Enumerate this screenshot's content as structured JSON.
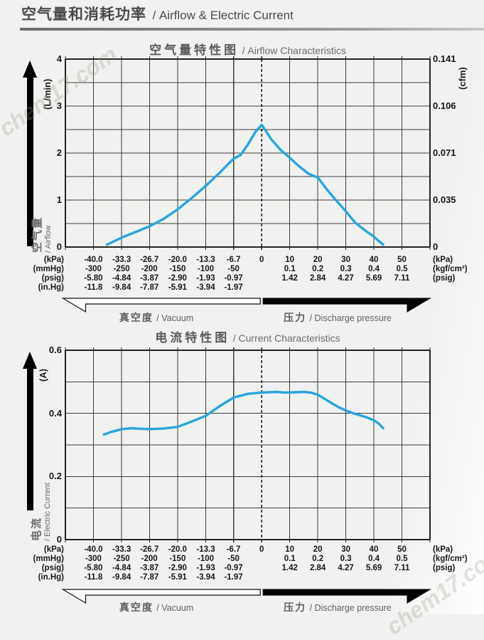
{
  "watermark": "chem17.com",
  "page": {
    "title_zh": "空气量和消耗功率",
    "title_en": "/ Airflow & Electric Current"
  },
  "x_axis": {
    "tick_positions_kpa": [
      -40,
      -33.3,
      -26.7,
      -20,
      -13.3,
      -6.7,
      0,
      10,
      20,
      30,
      40,
      50
    ],
    "rows": [
      {
        "unit_left": "(kPa)",
        "unit_right": "(kPa)",
        "values": [
          "-40.0",
          "-33.3",
          "-26.7",
          "-20.0",
          "-13.3",
          "-6.7",
          "0",
          "10",
          "20",
          "30",
          "40",
          "50"
        ]
      },
      {
        "unit_left": "(mmHg)",
        "unit_right": "(kgf/cm²)",
        "values": [
          "-300",
          "-250",
          "-200",
          "-150",
          "-100",
          "-50",
          "",
          "0.1",
          "0.2",
          "0.3",
          "0.4",
          "0.5"
        ]
      },
      {
        "unit_left": "(psig)",
        "unit_right": "(psig)",
        "values": [
          "-5.80",
          "-4.84",
          "-3.87",
          "-2.90",
          "-1.93",
          "-0.97",
          "",
          "1.42",
          "2.84",
          "4.27",
          "5.69",
          "7.11"
        ]
      },
      {
        "unit_left": "(in.Hg)",
        "unit_right": "",
        "values": [
          "-11.8",
          "-9.84",
          "-7.87",
          "-5.91",
          "-3.94",
          "-1.97",
          "",
          "",
          "",
          "",
          "",
          ""
        ]
      }
    ],
    "vacuum_zh": "真空度",
    "vacuum_en": "/ Vacuum",
    "pressure_zh": "压力",
    "pressure_en": "/ Discharge pressure"
  },
  "chart_data": [
    {
      "type": "line",
      "title_zh": "空气量特性图",
      "title_en": "/ Airflow Characteristics",
      "y_axis_zh": "空气量",
      "y_axis_en": "/ Airflow",
      "y_unit_left": "(L/min)",
      "y_unit_right": "(cfm)",
      "ylim": [
        0,
        4
      ],
      "y_grid_step": 0.5,
      "y_ticks_left": [
        {
          "v": 4,
          "t": "4"
        },
        {
          "v": 3,
          "t": "3"
        },
        {
          "v": 2,
          "t": "2"
        },
        {
          "v": 1,
          "t": "1"
        },
        {
          "v": 0,
          "t": "0"
        }
      ],
      "y_ticks_right": [
        {
          "v": 4,
          "t": "0.141"
        },
        {
          "v": 3,
          "t": "0.106"
        },
        {
          "v": 2,
          "t": "0.071"
        },
        {
          "v": 1,
          "t": "0.035"
        },
        {
          "v": 0,
          "t": "0"
        }
      ],
      "line_color": "#27a5de",
      "zero_line_dashed": true,
      "points_kpa_value": [
        [
          -36.8,
          0.05
        ],
        [
          -33.3,
          0.2
        ],
        [
          -30,
          0.32
        ],
        [
          -26.7,
          0.44
        ],
        [
          -23.3,
          0.6
        ],
        [
          -20,
          0.8
        ],
        [
          -16.7,
          1.04
        ],
        [
          -13.3,
          1.3
        ],
        [
          -10,
          1.58
        ],
        [
          -6.7,
          1.88
        ],
        [
          -5,
          1.96
        ],
        [
          -3.3,
          2.18
        ],
        [
          -1.5,
          2.45
        ],
        [
          0,
          2.6
        ],
        [
          1.5,
          2.47
        ],
        [
          3.3,
          2.3
        ],
        [
          6.7,
          2.07
        ],
        [
          10,
          1.9
        ],
        [
          13.3,
          1.72
        ],
        [
          16.7,
          1.56
        ],
        [
          20,
          1.48
        ],
        [
          23.3,
          1.22
        ],
        [
          26.7,
          0.98
        ],
        [
          30,
          0.76
        ],
        [
          33.3,
          0.52
        ],
        [
          36.7,
          0.36
        ],
        [
          40,
          0.22
        ],
        [
          41.7,
          0.13
        ],
        [
          43.3,
          0.05
        ]
      ]
    },
    {
      "type": "line",
      "title_zh": "电流特性图",
      "title_en": "/ Current Characteristics",
      "y_axis_zh": "电流",
      "y_axis_en": "/ Electric Current",
      "y_unit_left": "(A)",
      "y_unit_right": "",
      "ylim": [
        0,
        0.6
      ],
      "y_grid_step": 0.1,
      "y_ticks_left": [
        {
          "v": 0.6,
          "t": "0.6"
        },
        {
          "v": 0.4,
          "t": "0.4"
        },
        {
          "v": 0.2,
          "t": "0.2"
        },
        {
          "v": 0,
          "t": "0"
        }
      ],
      "y_ticks_right": [],
      "line_color": "#27a5de",
      "zero_line_dashed": true,
      "points_kpa_value": [
        [
          -37.5,
          0.333
        ],
        [
          -35.8,
          0.341
        ],
        [
          -33.3,
          0.35
        ],
        [
          -31,
          0.353
        ],
        [
          -28.3,
          0.351
        ],
        [
          -26.7,
          0.35
        ],
        [
          -23.3,
          0.352
        ],
        [
          -20,
          0.357
        ],
        [
          -16.7,
          0.374
        ],
        [
          -13.3,
          0.392
        ],
        [
          -10,
          0.423
        ],
        [
          -6.7,
          0.45
        ],
        [
          -3.3,
          0.462
        ],
        [
          0,
          0.466
        ],
        [
          2.5,
          0.467
        ],
        [
          5,
          0.468
        ],
        [
          8.3,
          0.466
        ],
        [
          11.7,
          0.467
        ],
        [
          15,
          0.468
        ],
        [
          17.5,
          0.466
        ],
        [
          20,
          0.459
        ],
        [
          22.5,
          0.446
        ],
        [
          25,
          0.432
        ],
        [
          27.5,
          0.419
        ],
        [
          30,
          0.409
        ],
        [
          32.5,
          0.401
        ],
        [
          35,
          0.394
        ],
        [
          37.5,
          0.387
        ],
        [
          40,
          0.378
        ],
        [
          41.7,
          0.368
        ],
        [
          43.3,
          0.353
        ]
      ]
    }
  ]
}
